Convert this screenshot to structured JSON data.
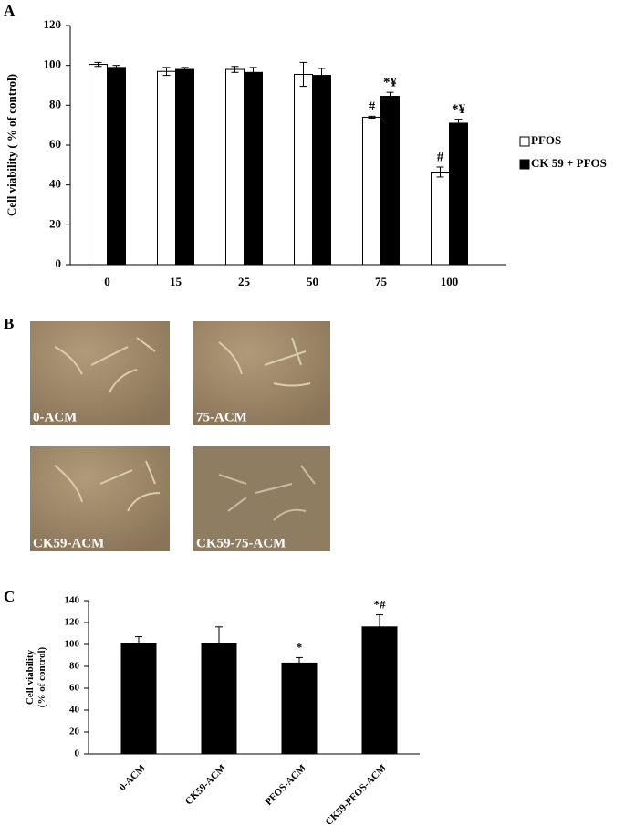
{
  "chart_data": [
    {
      "type": "bar",
      "panel": "A",
      "ylabel": "Cell viability ( % of control)",
      "categories": [
        "0",
        "15",
        "25",
        "50",
        "75",
        "100"
      ],
      "series": [
        {
          "name": "PFOS",
          "color": "#ffffff",
          "values": [
            100.5,
            97,
            98,
            95.5,
            74,
            46.5
          ],
          "errors": [
            1,
            2,
            1.5,
            6,
            0.5,
            2.5
          ],
          "annotations": [
            null,
            null,
            null,
            null,
            "#",
            "#"
          ]
        },
        {
          "name": "CK 59 + PFOS",
          "color": "#000000",
          "values": [
            99,
            98,
            96.5,
            95,
            84.5,
            71
          ],
          "errors": [
            1,
            1,
            2.5,
            3.5,
            2,
            2
          ],
          "annotations": [
            null,
            null,
            null,
            null,
            "*¥",
            "*¥"
          ]
        }
      ],
      "ylim": [
        0,
        120
      ],
      "yticks": [
        0,
        20,
        40,
        60,
        80,
        100,
        120
      ],
      "legend": "right"
    },
    {
      "type": "bar",
      "panel": "C",
      "ylabel": [
        "Cell viability",
        "(% of control)"
      ],
      "categories": [
        "0-ACM",
        "CK59-ACM",
        "PFOS-ACM",
        "CK59-PFOS-ACM"
      ],
      "values": [
        101,
        101,
        83,
        116
      ],
      "errors": [
        6,
        15,
        5,
        11
      ],
      "annotations": [
        null,
        null,
        "*",
        "*#"
      ],
      "color": "#000000",
      "ylim": [
        0,
        140
      ],
      "yticks": [
        0,
        20,
        40,
        60,
        80,
        100,
        120,
        140
      ]
    }
  ],
  "micrographs": {
    "panel": "B",
    "captions": [
      "0-ACM",
      "75-ACM",
      "CK59-ACM",
      "CK59-75-ACM"
    ]
  }
}
